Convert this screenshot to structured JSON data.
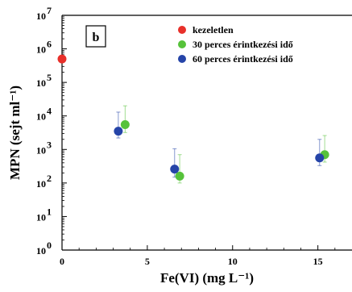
{
  "chart_data": {
    "type": "scatter",
    "panel_label": "b",
    "xlabel": "Fe(VI) (mg L⁻¹)",
    "ylabel": "MPN (sejt ml⁻¹)",
    "xlim": [
      0,
      17
    ],
    "ylim_log10": [
      0,
      7
    ],
    "y_scale": "log",
    "x_ticks": [
      0,
      5,
      10,
      15
    ],
    "y_ticks": [
      {
        "exp": 0,
        "label": "10",
        "sup": "0"
      },
      {
        "exp": 1,
        "label": "10",
        "sup": "1"
      },
      {
        "exp": 2,
        "label": "10",
        "sup": "2"
      },
      {
        "exp": 3,
        "label": "10",
        "sup": "3"
      },
      {
        "exp": 4,
        "label": "10",
        "sup": "4"
      },
      {
        "exp": 5,
        "label": "10",
        "sup": "5"
      },
      {
        "exp": 6,
        "label": "10",
        "sup": "6"
      },
      {
        "exp": 7,
        "label": "10",
        "sup": "7"
      }
    ],
    "legend_position": "top-right",
    "series": [
      {
        "name": "kezeletlen",
        "color": "#e8302a",
        "points": [
          {
            "x": 0,
            "y": 500000
          }
        ]
      },
      {
        "name": "30 perces érintkezési idő",
        "color": "#56c23a",
        "points": [
          {
            "x": 3.7,
            "y": 5500,
            "y_low": 3200,
            "y_high": 20000
          },
          {
            "x": 6.9,
            "y": 160,
            "y_low": 100,
            "y_high": 700
          },
          {
            "x": 15.4,
            "y": 700,
            "y_low": 420,
            "y_high": 2600
          }
        ]
      },
      {
        "name": "60 perces érintkezési idő",
        "color": "#2544a8",
        "points": [
          {
            "x": 3.3,
            "y": 3500,
            "y_low": 2200,
            "y_high": 13000
          },
          {
            "x": 6.6,
            "y": 260,
            "y_low": 150,
            "y_high": 1050
          },
          {
            "x": 15.1,
            "y": 560,
            "y_low": 330,
            "y_high": 2000
          }
        ]
      }
    ]
  }
}
